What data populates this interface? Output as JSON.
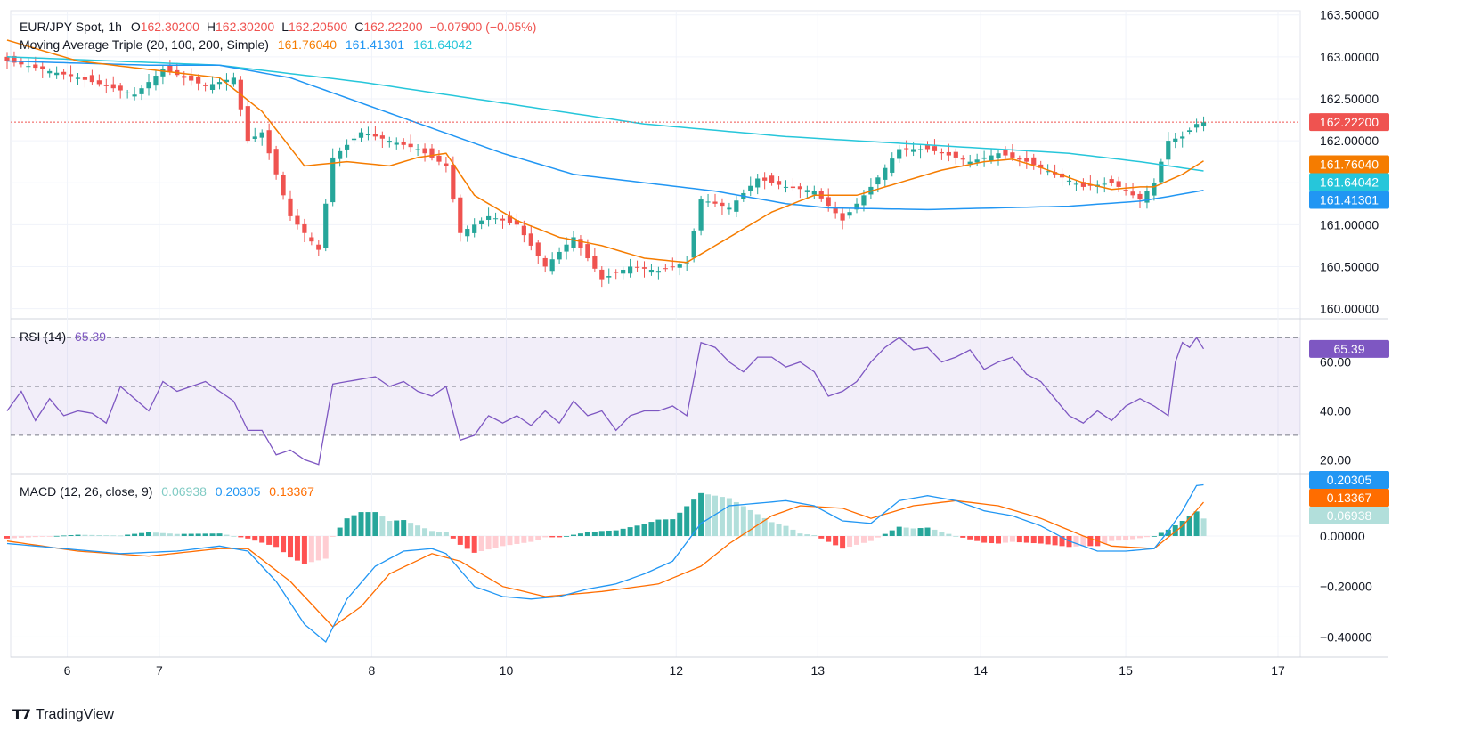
{
  "header": {
    "symbol": "EUR/JPY Spot, 1h",
    "open_label": "O",
    "open": "162.30200",
    "high_label": "H",
    "high": "162.30200",
    "low_label": "L",
    "low": "162.20500",
    "close_label": "C",
    "close": "162.22200",
    "change": "−0.07900 (−0.05%)"
  },
  "ma_legend": {
    "label": "Moving Average Triple (20, 100, 200, Simple)",
    "ma20": "161.76040",
    "ma100": "161.41301",
    "ma200": "161.64042"
  },
  "rsi_legend": {
    "label": "RSI (14)",
    "value": "65.39"
  },
  "macd_legend": {
    "label": "MACD (12, 26, close, 9)",
    "hist": "0.06938",
    "macd": "0.20305",
    "signal": "0.13367"
  },
  "brand": {
    "name": "TradingView"
  },
  "colors": {
    "up": "#26a69a",
    "down": "#ef5350",
    "ma20": "#f57c00",
    "ma100": "#2196f3",
    "ma200": "#26c6da",
    "rsi": "#7e57c2",
    "macd": "#2196f3",
    "signal": "#ff6d00",
    "hist_up_strong": "#26a69a",
    "hist_up_weak": "#b2dfdb",
    "hist_down_strong": "#ff5252",
    "hist_down_weak": "#ffcdd2"
  },
  "chart_data": [
    {
      "type": "candlestick",
      "title": "EUR/JPY Spot, 1h",
      "x_tick_labels": [
        "6",
        "7",
        "8",
        "10",
        "12",
        "13",
        "14",
        "15",
        "17"
      ],
      "y_ticks": [
        "163.50000",
        "163.00000",
        "162.50000",
        "162.00000",
        "161.50000",
        "161.00000",
        "160.50000",
        "160.00000"
      ],
      "ylim": [
        159.9,
        163.55
      ],
      "last_price": 162.222,
      "last_price_label": "162.22200",
      "ma_tags": {
        "ma20": "161.76040",
        "ma200": "161.64042",
        "ma100": "161.41301"
      },
      "close_anchors": [
        [
          0,
          162.95
        ],
        [
          10,
          162.75
        ],
        [
          18,
          162.55
        ],
        [
          22,
          162.85
        ],
        [
          28,
          162.65
        ],
        [
          32,
          162.75
        ],
        [
          34,
          162.0
        ],
        [
          36,
          162.1
        ],
        [
          40,
          161.1
        ],
        [
          44,
          160.7
        ],
        [
          46,
          161.8
        ],
        [
          50,
          162.1
        ],
        [
          54,
          162.0
        ],
        [
          58,
          161.9
        ],
        [
          62,
          161.7
        ],
        [
          64,
          160.9
        ],
        [
          68,
          161.1
        ],
        [
          72,
          161.0
        ],
        [
          76,
          160.5
        ],
        [
          80,
          160.85
        ],
        [
          84,
          160.35
        ],
        [
          88,
          160.5
        ],
        [
          92,
          160.45
        ],
        [
          96,
          160.55
        ],
        [
          98,
          161.3
        ],
        [
          102,
          161.2
        ],
        [
          106,
          161.55
        ],
        [
          110,
          161.45
        ],
        [
          114,
          161.4
        ],
        [
          118,
          161.05
        ],
        [
          122,
          161.45
        ],
        [
          126,
          161.9
        ],
        [
          130,
          161.9
        ],
        [
          136,
          161.75
        ],
        [
          140,
          161.85
        ],
        [
          144,
          161.75
        ],
        [
          148,
          161.6
        ],
        [
          152,
          161.45
        ],
        [
          156,
          161.5
        ],
        [
          160,
          161.3
        ],
        [
          162,
          161.5
        ],
        [
          164,
          162.0
        ],
        [
          166,
          162.05
        ],
        [
          168,
          162.2
        ],
        [
          169,
          162.22
        ]
      ],
      "ma20_anchors": [
        [
          0,
          163.2
        ],
        [
          10,
          162.95
        ],
        [
          20,
          162.85
        ],
        [
          30,
          162.75
        ],
        [
          36,
          162.35
        ],
        [
          42,
          161.7
        ],
        [
          48,
          161.75
        ],
        [
          54,
          161.7
        ],
        [
          58,
          161.8
        ],
        [
          62,
          161.85
        ],
        [
          66,
          161.35
        ],
        [
          72,
          161.05
        ],
        [
          78,
          160.85
        ],
        [
          84,
          160.75
        ],
        [
          90,
          160.6
        ],
        [
          96,
          160.55
        ],
        [
          102,
          160.85
        ],
        [
          108,
          161.15
        ],
        [
          114,
          161.35
        ],
        [
          120,
          161.35
        ],
        [
          126,
          161.5
        ],
        [
          132,
          161.65
        ],
        [
          138,
          161.75
        ],
        [
          142,
          161.78
        ],
        [
          146,
          161.68
        ],
        [
          152,
          161.5
        ],
        [
          156,
          161.42
        ],
        [
          160,
          161.45
        ],
        [
          162,
          161.45
        ],
        [
          166,
          161.6
        ],
        [
          169,
          161.76
        ]
      ],
      "ma100_anchors": [
        [
          0,
          162.95
        ],
        [
          20,
          162.9
        ],
        [
          30,
          162.9
        ],
        [
          40,
          162.75
        ],
        [
          50,
          162.45
        ],
        [
          60,
          162.15
        ],
        [
          70,
          161.85
        ],
        [
          80,
          161.6
        ],
        [
          90,
          161.5
        ],
        [
          100,
          161.4
        ],
        [
          110,
          161.25
        ],
        [
          116,
          161.2
        ],
        [
          130,
          161.18
        ],
        [
          140,
          161.2
        ],
        [
          150,
          161.22
        ],
        [
          160,
          161.28
        ],
        [
          165,
          161.35
        ],
        [
          169,
          161.41
        ]
      ],
      "ma200_anchors": [
        [
          0,
          163.0
        ],
        [
          30,
          162.9
        ],
        [
          50,
          162.7
        ],
        [
          70,
          162.45
        ],
        [
          90,
          162.2
        ],
        [
          110,
          162.05
        ],
        [
          130,
          161.95
        ],
        [
          150,
          161.85
        ],
        [
          160,
          161.75
        ],
        [
          169,
          161.64
        ]
      ]
    },
    {
      "type": "line",
      "title": "RSI (14)",
      "y_ticks": [
        "60.00",
        "40.00",
        "20.00"
      ],
      "ylim": [
        15,
        77
      ],
      "bands": [
        70,
        50,
        30
      ],
      "last_label": "65.39",
      "anchors": [
        [
          0,
          40
        ],
        [
          2,
          48
        ],
        [
          4,
          36
        ],
        [
          6,
          45
        ],
        [
          8,
          38
        ],
        [
          10,
          40
        ],
        [
          12,
          39
        ],
        [
          14,
          35
        ],
        [
          16,
          50
        ],
        [
          18,
          45
        ],
        [
          20,
          40
        ],
        [
          22,
          52
        ],
        [
          24,
          48
        ],
        [
          26,
          50
        ],
        [
          28,
          52
        ],
        [
          30,
          48
        ],
        [
          32,
          44
        ],
        [
          34,
          32
        ],
        [
          36,
          32
        ],
        [
          38,
          22
        ],
        [
          40,
          24
        ],
        [
          42,
          20
        ],
        [
          44,
          18
        ],
        [
          46,
          51
        ],
        [
          48,
          52
        ],
        [
          50,
          53
        ],
        [
          52,
          54
        ],
        [
          54,
          50
        ],
        [
          56,
          52
        ],
        [
          58,
          48
        ],
        [
          60,
          46
        ],
        [
          62,
          50
        ],
        [
          64,
          28
        ],
        [
          66,
          30
        ],
        [
          68,
          38
        ],
        [
          70,
          35
        ],
        [
          72,
          38
        ],
        [
          74,
          34
        ],
        [
          76,
          40
        ],
        [
          78,
          35
        ],
        [
          80,
          44
        ],
        [
          82,
          38
        ],
        [
          84,
          40
        ],
        [
          86,
          32
        ],
        [
          88,
          38
        ],
        [
          90,
          40
        ],
        [
          92,
          40
        ],
        [
          94,
          42
        ],
        [
          96,
          38
        ],
        [
          98,
          68
        ],
        [
          100,
          66
        ],
        [
          102,
          60
        ],
        [
          104,
          56
        ],
        [
          106,
          62
        ],
        [
          108,
          62
        ],
        [
          110,
          58
        ],
        [
          112,
          60
        ],
        [
          114,
          56
        ],
        [
          116,
          46
        ],
        [
          118,
          48
        ],
        [
          120,
          52
        ],
        [
          122,
          60
        ],
        [
          124,
          66
        ],
        [
          126,
          70
        ],
        [
          128,
          65
        ],
        [
          130,
          66
        ],
        [
          132,
          60
        ],
        [
          134,
          62
        ],
        [
          136,
          65
        ],
        [
          138,
          57
        ],
        [
          140,
          60
        ],
        [
          142,
          62
        ],
        [
          144,
          55
        ],
        [
          146,
          52
        ],
        [
          148,
          45
        ],
        [
          150,
          38
        ],
        [
          152,
          35
        ],
        [
          154,
          40
        ],
        [
          156,
          36
        ],
        [
          158,
          42
        ],
        [
          160,
          45
        ],
        [
          162,
          42
        ],
        [
          164,
          38
        ],
        [
          165,
          60
        ],
        [
          166,
          68
        ],
        [
          167,
          66
        ],
        [
          168,
          70
        ],
        [
          169,
          65.39
        ]
      ]
    },
    {
      "type": "bar",
      "title": "MACD (12, 26, close, 9)",
      "y_ticks": [
        "0.00000",
        "-0.20000",
        "-0.40000"
      ],
      "ylim": [
        -0.48,
        0.24
      ],
      "tags": {
        "macd": "0.20305",
        "signal": "0.13367",
        "hist": "0.06938"
      },
      "macd_anchors": [
        [
          0,
          -0.03
        ],
        [
          8,
          -0.05
        ],
        [
          16,
          -0.07
        ],
        [
          24,
          -0.06
        ],
        [
          30,
          -0.04
        ],
        [
          34,
          -0.06
        ],
        [
          38,
          -0.18
        ],
        [
          42,
          -0.35
        ],
        [
          45,
          -0.42
        ],
        [
          48,
          -0.25
        ],
        [
          52,
          -0.12
        ],
        [
          56,
          -0.06
        ],
        [
          60,
          -0.05
        ],
        [
          62,
          -0.07
        ],
        [
          66,
          -0.2
        ],
        [
          70,
          -0.24
        ],
        [
          74,
          -0.25
        ],
        [
          78,
          -0.24
        ],
        [
          82,
          -0.21
        ],
        [
          86,
          -0.19
        ],
        [
          90,
          -0.15
        ],
        [
          94,
          -0.1
        ],
        [
          98,
          0.05
        ],
        [
          102,
          0.12
        ],
        [
          106,
          0.13
        ],
        [
          110,
          0.14
        ],
        [
          114,
          0.12
        ],
        [
          118,
          0.06
        ],
        [
          122,
          0.05
        ],
        [
          126,
          0.14
        ],
        [
          130,
          0.16
        ],
        [
          134,
          0.14
        ],
        [
          138,
          0.1
        ],
        [
          142,
          0.08
        ],
        [
          146,
          0.04
        ],
        [
          150,
          -0.02
        ],
        [
          154,
          -0.06
        ],
        [
          158,
          -0.06
        ],
        [
          162,
          -0.05
        ],
        [
          164,
          0.02
        ],
        [
          166,
          0.1
        ],
        [
          168,
          0.2
        ],
        [
          169,
          0.20305
        ]
      ],
      "signal_anchors": [
        [
          0,
          -0.02
        ],
        [
          10,
          -0.06
        ],
        [
          20,
          -0.08
        ],
        [
          30,
          -0.05
        ],
        [
          34,
          -0.05
        ],
        [
          40,
          -0.18
        ],
        [
          44,
          -0.3
        ],
        [
          46,
          -0.36
        ],
        [
          50,
          -0.28
        ],
        [
          54,
          -0.15
        ],
        [
          60,
          -0.07
        ],
        [
          64,
          -0.1
        ],
        [
          70,
          -0.2
        ],
        [
          76,
          -0.24
        ],
        [
          84,
          -0.22
        ],
        [
          92,
          -0.19
        ],
        [
          98,
          -0.12
        ],
        [
          102,
          -0.03
        ],
        [
          108,
          0.08
        ],
        [
          112,
          0.12
        ],
        [
          118,
          0.11
        ],
        [
          122,
          0.07
        ],
        [
          128,
          0.12
        ],
        [
          134,
          0.14
        ],
        [
          140,
          0.12
        ],
        [
          146,
          0.07
        ],
        [
          152,
          0.0
        ],
        [
          156,
          -0.04
        ],
        [
          162,
          -0.05
        ],
        [
          166,
          0.04
        ],
        [
          169,
          0.13367
        ]
      ]
    }
  ]
}
